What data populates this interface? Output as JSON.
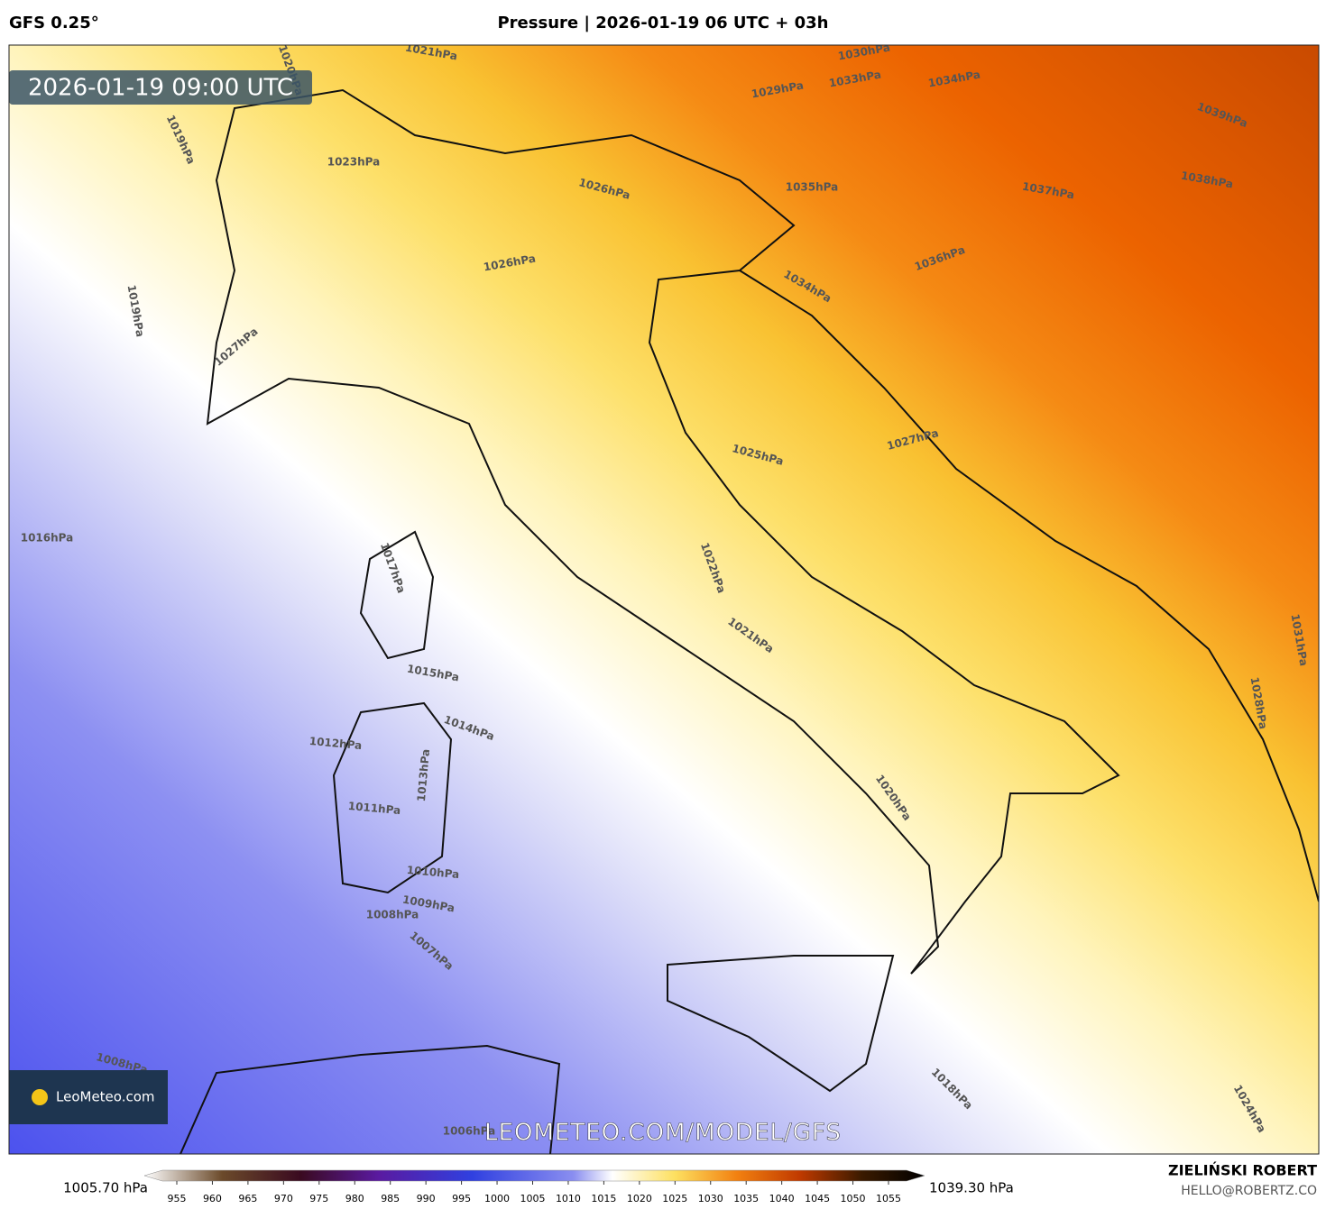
{
  "header": {
    "model": "GFS 0.25°",
    "title": "Pressure | 2026-01-19 06 UTC + 03h"
  },
  "map": {
    "valid_time": "2026-01-19 09:00 UTC",
    "watermark": "LEOMETEO.COM/MODEL/GFS",
    "logo": "LeoMeteo.com",
    "isobar_labels": [
      "1021hPa",
      "1020hPa",
      "1019hPa",
      "1023hPa",
      "1026hPa",
      "1026hPa",
      "1019hPa",
      "1027hPa",
      "1029hPa",
      "1030hPa",
      "1033hPa",
      "1034hPa",
      "1039hPa",
      "1038hPa",
      "1035hPa",
      "1037hPa",
      "1036hPa",
      "1034hPa",
      "1025hPa",
      "1027hPa",
      "1016hPa",
      "1017hPa",
      "1022hPa",
      "1021hPa",
      "1015hPa",
      "1014hPa",
      "1012hPa",
      "1013hPa",
      "1011hPa",
      "1010hPa",
      "1009hPa",
      "1008hPa",
      "1007hPa",
      "1020hPa",
      "1018hPa",
      "1024hPa",
      "1028hPa",
      "1031hPa",
      "1008hPa",
      "1006hPa"
    ]
  },
  "colorbar": {
    "min_label": "1005.70 hPa",
    "max_label": "1039.30 hPa",
    "ticks": [
      955,
      960,
      965,
      970,
      975,
      980,
      985,
      990,
      995,
      1000,
      1005,
      1010,
      1015,
      1020,
      1025,
      1030,
      1035,
      1040,
      1045,
      1050,
      1055
    ]
  },
  "footer": {
    "author": "ZIELIŃSKI ROBERT",
    "email": "HELLO@ROBERTZ.CO"
  }
}
